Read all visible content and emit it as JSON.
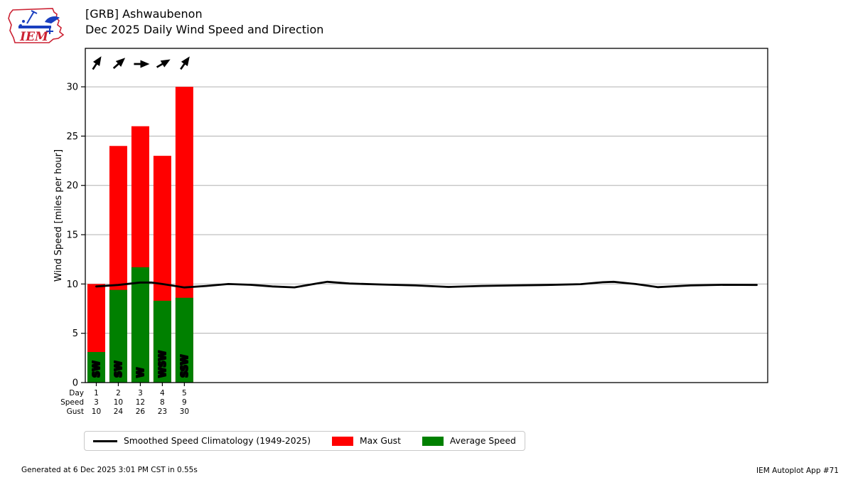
{
  "header": {
    "title_line1": "[GRB] Ashwaubenon",
    "title_line2": "Dec 2025 Daily Wind Speed and Direction"
  },
  "logo": {
    "text": "IEM"
  },
  "legend": {
    "climatology": "Smoothed Speed Climatology (1949-2025)",
    "max_gust": "Max Gust",
    "average_speed": "Average Speed"
  },
  "footer": {
    "generated": "Generated at 6 Dec 2025 3:01 PM CST in 0.55s",
    "app": "IEM Autoplot App #71"
  },
  "colors": {
    "max_gust": "#ff0000",
    "average_speed": "#008000",
    "climatology_line": "#000000",
    "grid": "#b0b0b0",
    "spine": "#000000",
    "logo_red": "#cc2233",
    "logo_blue": "#1a3fbf"
  },
  "chart_data": {
    "type": "bar",
    "title": "Dec 2025 Daily Wind Speed and Direction",
    "ylabel": "Wind Speed [miles per hour]",
    "ylim": [
      0,
      33.9
    ],
    "yticks": [
      0,
      5,
      10,
      15,
      20,
      25,
      30
    ],
    "xlim": [
      0.5,
      31.5
    ],
    "grid": true,
    "legend_position": "bottom",
    "days": [
      1,
      2,
      3,
      4,
      5
    ],
    "series": [
      {
        "name": "Max Gust",
        "color_key": "max_gust",
        "values": [
          10,
          24,
          26,
          23,
          30
        ]
      },
      {
        "name": "Average Speed",
        "color_key": "average_speed",
        "values": [
          3.1,
          9.4,
          11.7,
          8.3,
          8.6
        ]
      }
    ],
    "directions": [
      "SW",
      "SW",
      "W",
      "WSW",
      "SSW"
    ],
    "arrow_angles_deg": [
      57,
      42,
      0,
      30,
      55
    ],
    "table": {
      "row_labels": [
        "Day",
        "Speed",
        "Gust"
      ],
      "day": [
        1,
        2,
        3,
        4,
        5
      ],
      "speed": [
        3,
        10,
        12,
        8,
        9
      ],
      "gust": [
        10,
        24,
        26,
        23,
        30
      ]
    },
    "climatology": {
      "name": "Smoothed Speed Climatology (1949-2025)",
      "points": [
        [
          1,
          9.75
        ],
        [
          2,
          9.9
        ],
        [
          3,
          10.15
        ],
        [
          3.5,
          10.15
        ],
        [
          4,
          10.0
        ],
        [
          5,
          9.65
        ],
        [
          6,
          9.8
        ],
        [
          7,
          10.0
        ],
        [
          8,
          9.92
        ],
        [
          9,
          9.75
        ],
        [
          10,
          9.66
        ],
        [
          11,
          10.05
        ],
        [
          11.5,
          10.22
        ],
        [
          12.5,
          10.05
        ],
        [
          14,
          9.95
        ],
        [
          15.5,
          9.85
        ],
        [
          17,
          9.7
        ],
        [
          18.5,
          9.8
        ],
        [
          20,
          9.85
        ],
        [
          21.5,
          9.9
        ],
        [
          23,
          9.98
        ],
        [
          24,
          10.18
        ],
        [
          24.5,
          10.22
        ],
        [
          25.5,
          10.0
        ],
        [
          26.5,
          9.68
        ],
        [
          28,
          9.85
        ],
        [
          29.5,
          9.92
        ],
        [
          31,
          9.9
        ]
      ]
    }
  }
}
